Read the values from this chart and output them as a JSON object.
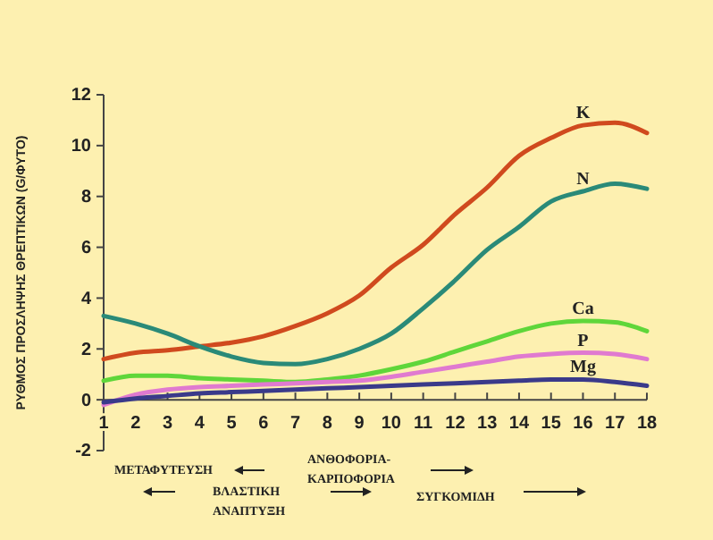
{
  "chart_data": {
    "type": "line",
    "ylabel": "ΡΥΘΜΟΣ ΠΡΟΣΛΗΨΗΣ ΘΡΕΠΤΙΚΩΝ (G/ΦΥΤΟ)",
    "x": [
      1,
      2,
      3,
      4,
      5,
      6,
      7,
      8,
      9,
      10,
      11,
      12,
      13,
      14,
      15,
      16,
      17,
      18
    ],
    "xlim": [
      1,
      18
    ],
    "xticks": [
      1,
      2,
      3,
      4,
      5,
      6,
      7,
      8,
      9,
      10,
      11,
      12,
      13,
      14,
      15,
      16,
      17,
      18
    ],
    "ylim": [
      -2,
      12
    ],
    "yticks": [
      -2,
      0,
      2,
      4,
      6,
      8,
      10,
      12
    ],
    "grid": false,
    "marker": "none",
    "line_style": "solid",
    "series": [
      {
        "name": "K",
        "color": "#d04a1e",
        "values": [
          1.6,
          1.85,
          1.95,
          2.1,
          2.25,
          2.5,
          2.9,
          3.4,
          4.1,
          5.2,
          6.1,
          7.3,
          8.35,
          9.6,
          10.3,
          10.8,
          10.9,
          10.5
        ]
      },
      {
        "name": "N",
        "color": "#2a8a78",
        "values": [
          3.3,
          3.0,
          2.6,
          2.1,
          1.7,
          1.45,
          1.4,
          1.6,
          2.0,
          2.6,
          3.6,
          4.7,
          5.9,
          6.8,
          7.8,
          8.2,
          8.5,
          8.3
        ]
      },
      {
        "name": "Ca",
        "color": "#5fd63a",
        "values": [
          0.75,
          0.95,
          0.95,
          0.85,
          0.8,
          0.75,
          0.7,
          0.8,
          0.95,
          1.2,
          1.5,
          1.9,
          2.3,
          2.7,
          3.0,
          3.1,
          3.05,
          2.7
        ]
      },
      {
        "name": "P",
        "color": "#e07ad0",
        "values": [
          -0.2,
          0.2,
          0.4,
          0.5,
          0.55,
          0.6,
          0.65,
          0.7,
          0.75,
          0.9,
          1.1,
          1.3,
          1.5,
          1.7,
          1.8,
          1.85,
          1.8,
          1.6
        ]
      },
      {
        "name": "Mg",
        "color": "#3a3a8a",
        "values": [
          -0.1,
          0.05,
          0.15,
          0.25,
          0.3,
          0.35,
          0.4,
          0.45,
          0.5,
          0.55,
          0.6,
          0.65,
          0.7,
          0.75,
          0.8,
          0.8,
          0.7,
          0.55
        ]
      }
    ],
    "annotations": [
      "ΜΕΤΑΦΥΤΕΥΣΗ",
      "ΒΛΑΣΤΙΚΗ\nΑΝΑΠΤΥΞΗ",
      "ΑΝΘΟΦΟΡΙΑ-\nΚΑΡΠΟΦΟΡΙΑ",
      "ΣΥΓΚΟΜΙΔΗ"
    ]
  }
}
